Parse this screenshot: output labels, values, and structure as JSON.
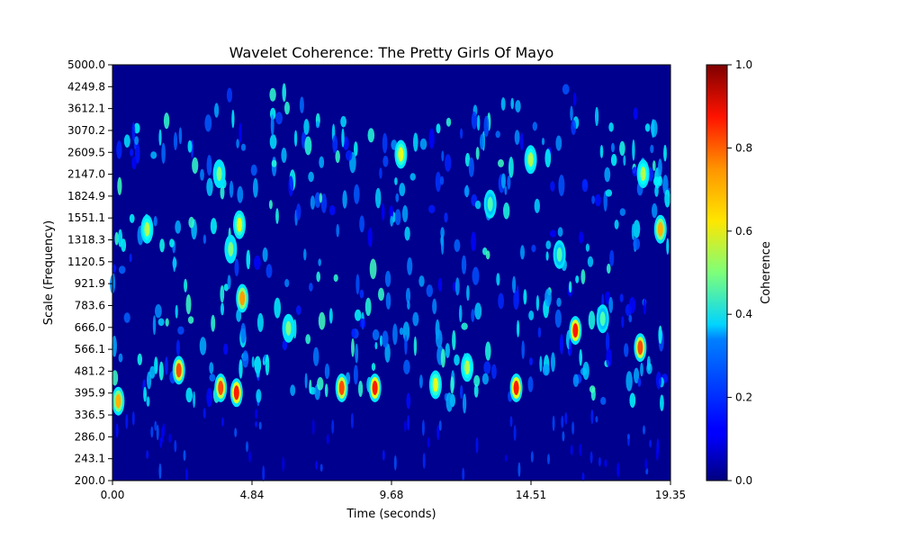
{
  "chart_data": {
    "type": "heatmap",
    "title": "Wavelet Coherence: The Pretty Girls Of Mayo",
    "xlabel": "Time (seconds)",
    "ylabel": "Scale (Frequency)",
    "x_range": [
      0.0,
      19.35
    ],
    "x_ticks": [
      "0.00",
      "4.84",
      "9.68",
      "14.51",
      "19.35"
    ],
    "y_scale": "log",
    "y_range": [
      200.0,
      5000.0
    ],
    "y_ticks": [
      "200.0",
      "243.1",
      "286.0",
      "336.5",
      "395.9",
      "481.2",
      "566.1",
      "666.0",
      "783.6",
      "921.9",
      "1120.5",
      "1318.3",
      "1551.1",
      "1824.9",
      "2147.0",
      "2609.5",
      "3070.2",
      "3612.1",
      "4249.8",
      "5000.0"
    ],
    "colormap": "jet",
    "background_color": "#00008f",
    "colorbar": {
      "label": "Coherence",
      "range": [
        0.0,
        1.0
      ],
      "ticks": [
        "0.0",
        "0.2",
        "0.4",
        "0.6",
        "0.8",
        "1.0"
      ]
    },
    "grid": false,
    "hotspots": [
      {
        "t": 4.5,
        "scale": 820,
        "value": 0.72
      },
      {
        "t": 4.4,
        "scale": 1450,
        "value": 0.6
      },
      {
        "t": 4.3,
        "scale": 395,
        "value": 0.85
      },
      {
        "t": 4.1,
        "scale": 1200,
        "value": 0.5
      },
      {
        "t": 3.75,
        "scale": 410,
        "value": 0.8
      },
      {
        "t": 3.7,
        "scale": 2150,
        "value": 0.5
      },
      {
        "t": 2.3,
        "scale": 470,
        "value": 0.8
      },
      {
        "t": 0.2,
        "scale": 370,
        "value": 0.7
      },
      {
        "t": 1.2,
        "scale": 1400,
        "value": 0.55
      },
      {
        "t": 7.95,
        "scale": 410,
        "value": 0.8
      },
      {
        "t": 9.1,
        "scale": 410,
        "value": 0.85
      },
      {
        "t": 10.0,
        "scale": 2500,
        "value": 0.6
      },
      {
        "t": 11.2,
        "scale": 420,
        "value": 0.6
      },
      {
        "t": 14.0,
        "scale": 410,
        "value": 0.85
      },
      {
        "t": 14.5,
        "scale": 2400,
        "value": 0.55
      },
      {
        "t": 15.5,
        "scale": 1150,
        "value": 0.45
      },
      {
        "t": 16.05,
        "scale": 640,
        "value": 0.85
      },
      {
        "t": 17.0,
        "scale": 700,
        "value": 0.45
      },
      {
        "t": 18.3,
        "scale": 560,
        "value": 0.8
      },
      {
        "t": 18.4,
        "scale": 2150,
        "value": 0.55
      },
      {
        "t": 19.0,
        "scale": 1400,
        "value": 0.7
      },
      {
        "t": 6.1,
        "scale": 650,
        "value": 0.5
      },
      {
        "t": 12.3,
        "scale": 480,
        "value": 0.55
      },
      {
        "t": 13.1,
        "scale": 1700,
        "value": 0.45
      }
    ]
  }
}
